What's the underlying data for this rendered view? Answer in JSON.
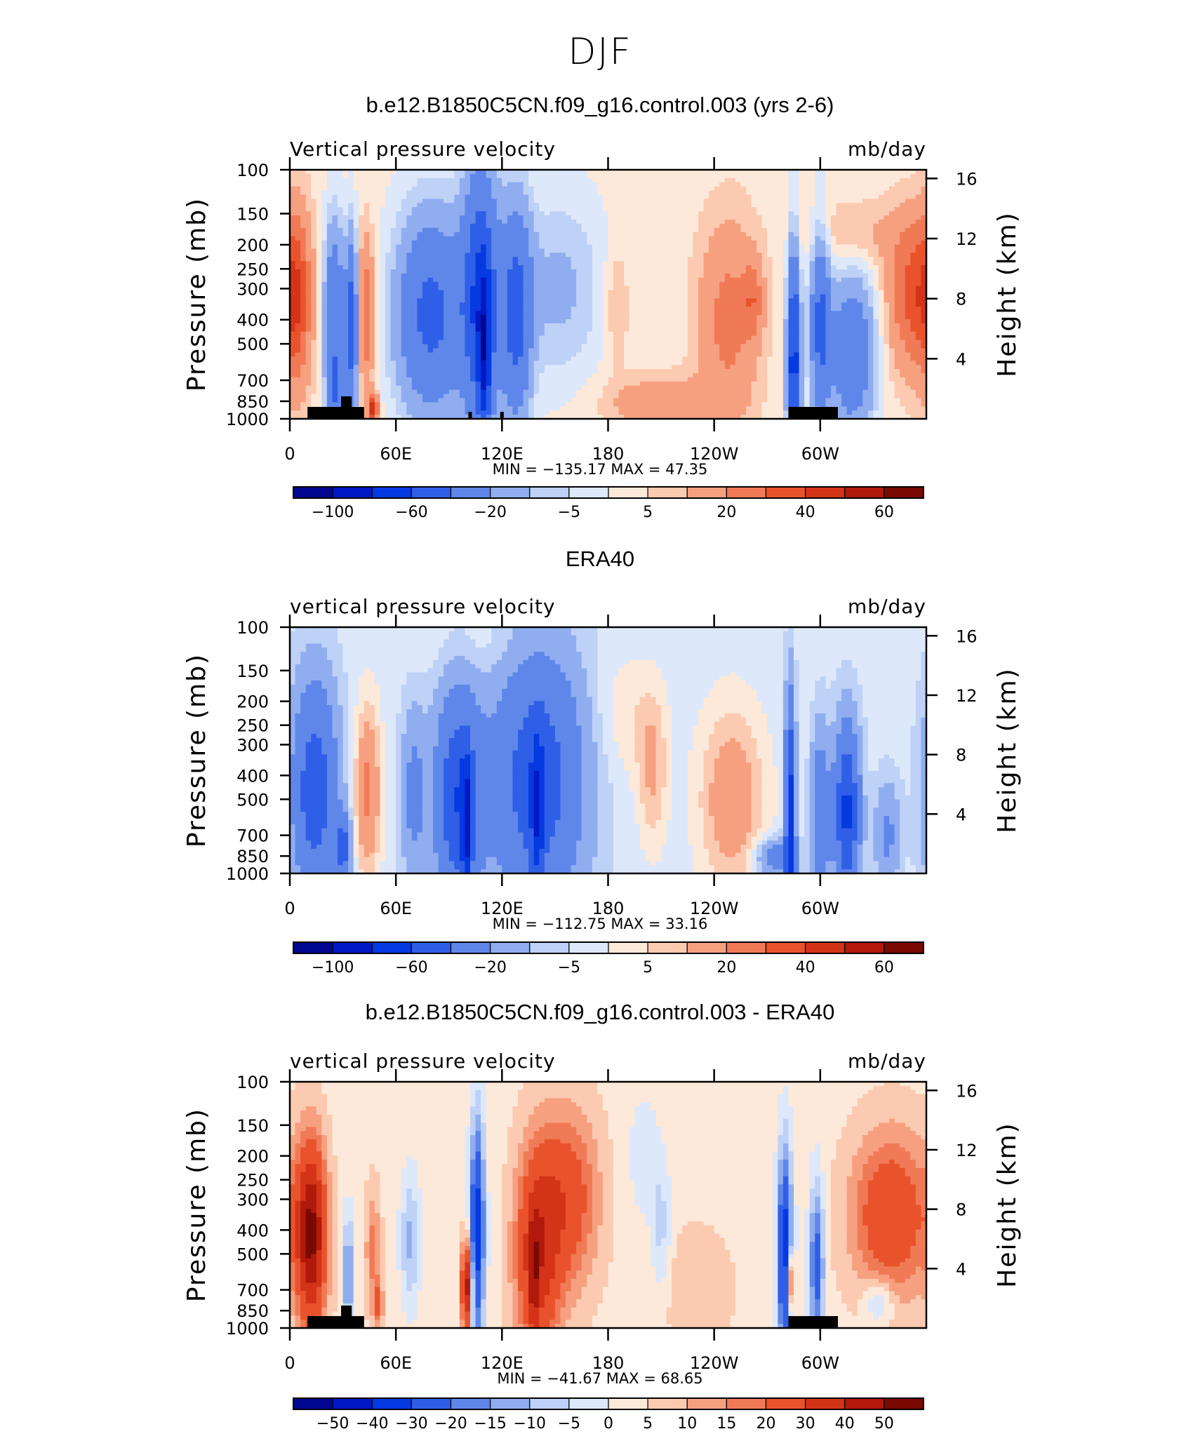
{
  "figure_title": "DJF",
  "colors": {
    "cool": [
      "#00068e",
      "#0019c4",
      "#0539e1",
      "#2f5fe6",
      "#5f87ea",
      "#90adf0",
      "#bed1f6",
      "#dde8fa"
    ],
    "warm": [
      "#fde9d9",
      "#fbcab0",
      "#f6a080",
      "#f17a56",
      "#e9532c",
      "#d33417",
      "#b0190b",
      "#7a0903"
    ],
    "land": "#000000"
  },
  "chart_data": [
    {
      "type": "heatmap",
      "title": "b.e12.B1850C5CN.f09_g16.control.003 (yrs 2-6)",
      "left_label": "Vertical pressure velocity",
      "right_label": "mb/day",
      "ylabel": "Pressure (mb)",
      "y2label": "Height (km)",
      "x_ticks": [
        "0",
        "60E",
        "120E",
        "180",
        "120W",
        "60W"
      ],
      "x_tick_lon": [
        0,
        60,
        120,
        180,
        240,
        300
      ],
      "xlim": [
        0,
        360
      ],
      "y_ticks": [
        "100",
        "150",
        "200",
        "250",
        "300",
        "400",
        "500",
        "700",
        "850",
        "1000"
      ],
      "y_tick_p": [
        100,
        150,
        200,
        250,
        300,
        400,
        500,
        700,
        850,
        1000
      ],
      "y_scale": "log-pressure",
      "ylim": [
        1000,
        100
      ],
      "y2_ticks": [
        "16",
        "12",
        "8",
        "4"
      ],
      "y2_tick_km": [
        16,
        12,
        8,
        4
      ],
      "stats_text": "MIN = −135.17   MAX =   47.35",
      "min": -135.17,
      "max": 47.35,
      "colorbar_labels": [
        "−100",
        "−60",
        "−20",
        "−5",
        "5",
        "20",
        "40",
        "60"
      ],
      "colorbar_levels": [
        -120,
        -100,
        -80,
        -60,
        -40,
        -20,
        -10,
        -5,
        0,
        5,
        10,
        20,
        30,
        40,
        50,
        60,
        80
      ],
      "field": {
        "background": 2,
        "features": [
          {
            "lon": 4,
            "p": 330,
            "dlon": 6,
            "dp": 0.6,
            "amp": 28
          },
          {
            "lon": 25,
            "p": 350,
            "dlon": 4,
            "dp": 0.55,
            "amp": -38
          },
          {
            "lon": 26,
            "p": 760,
            "dlon": 3.5,
            "dp": 0.25,
            "amp": -35
          },
          {
            "lon": 35,
            "p": 420,
            "dlon": 2.5,
            "dp": 0.55,
            "amp": -55
          },
          {
            "lon": 43,
            "p": 380,
            "dlon": 3.5,
            "dp": 0.5,
            "amp": 28
          },
          {
            "lon": 47,
            "p": 910,
            "dlon": 2,
            "dp": 0.1,
            "amp": 45
          },
          {
            "lon": 80,
            "p": 380,
            "dlon": 14,
            "dp": 0.65,
            "amp": -48
          },
          {
            "lon": 108,
            "p": 330,
            "dlon": 7,
            "dp": 0.85,
            "amp": -62
          },
          {
            "lon": 110,
            "p": 560,
            "dlon": 2.5,
            "dp": 0.5,
            "amp": -50
          },
          {
            "lon": 128,
            "p": 380,
            "dlon": 6,
            "dp": 0.7,
            "amp": -48
          },
          {
            "lon": 152,
            "p": 300,
            "dlon": 18,
            "dp": 0.6,
            "amp": -14
          },
          {
            "lon": 185,
            "p": 350,
            "dlon": 5,
            "dp": 0.4,
            "amp": 9
          },
          {
            "lon": 210,
            "p": 870,
            "dlon": 22,
            "dp": 0.18,
            "amp": 16
          },
          {
            "lon": 248,
            "p": 400,
            "dlon": 12,
            "dp": 0.65,
            "amp": 22
          },
          {
            "lon": 262,
            "p": 330,
            "dlon": 4,
            "dp": 0.25,
            "amp": 18
          },
          {
            "lon": 285,
            "p": 600,
            "dlon": 2.5,
            "dp": 0.7,
            "amp": -75
          },
          {
            "lon": 300,
            "p": 420,
            "dlon": 4,
            "dp": 0.6,
            "amp": -45
          },
          {
            "lon": 318,
            "p": 550,
            "dlon": 9,
            "dp": 0.5,
            "amp": -40
          },
          {
            "lon": 352,
            "p": 320,
            "dlon": 10,
            "dp": 0.5,
            "amp": 30
          },
          {
            "lon": 320,
            "p": 180,
            "dlon": 22,
            "dp": 0.22,
            "amp": 9
          }
        ]
      }
    },
    {
      "type": "heatmap",
      "title": "ERA40",
      "left_label": "vertical pressure velocity",
      "right_label": "mb/day",
      "ylabel": "Pressure (mb)",
      "y2label": "Height (km)",
      "x_ticks": [
        "0",
        "60E",
        "120E",
        "180",
        "120W",
        "60W"
      ],
      "x_tick_lon": [
        0,
        60,
        120,
        180,
        240,
        300
      ],
      "xlim": [
        0,
        360
      ],
      "y_ticks": [
        "100",
        "150",
        "200",
        "250",
        "300",
        "400",
        "500",
        "700",
        "850",
        "1000"
      ],
      "y_tick_p": [
        100,
        150,
        200,
        250,
        300,
        400,
        500,
        700,
        850,
        1000
      ],
      "y_scale": "log-pressure",
      "ylim": [
        1000,
        100
      ],
      "y2_ticks": [
        "16",
        "12",
        "8",
        "4"
      ],
      "y2_tick_km": [
        16,
        12,
        8,
        4
      ],
      "stats_text": "MIN = −112.75   MAX =   33.16",
      "min": -112.75,
      "max": 33.16,
      "colorbar_labels": [
        "−100",
        "−60",
        "−20",
        "−5",
        "5",
        "20",
        "40",
        "60"
      ],
      "colorbar_levels": [
        -120,
        -100,
        -80,
        -60,
        -40,
        -20,
        -10,
        -5,
        0,
        5,
        10,
        20,
        30,
        40,
        50,
        60,
        80
      ],
      "field": {
        "background": -3,
        "features": [
          {
            "lon": 14,
            "p": 460,
            "dlon": 9,
            "dp": 0.7,
            "amp": -50
          },
          {
            "lon": 30,
            "p": 780,
            "dlon": 3,
            "dp": 0.2,
            "amp": -45
          },
          {
            "lon": 44,
            "p": 460,
            "dlon": 5,
            "dp": 0.55,
            "amp": 26
          },
          {
            "lon": 70,
            "p": 480,
            "dlon": 5,
            "dp": 0.55,
            "amp": -22
          },
          {
            "lon": 95,
            "p": 500,
            "dlon": 9,
            "dp": 0.7,
            "amp": -55
          },
          {
            "lon": 100,
            "p": 650,
            "dlon": 2,
            "dp": 0.45,
            "amp": -50
          },
          {
            "lon": 140,
            "p": 420,
            "dlon": 18,
            "dp": 0.85,
            "amp": -50
          },
          {
            "lon": 140,
            "p": 580,
            "dlon": 2.5,
            "dp": 0.5,
            "amp": -40
          },
          {
            "lon": 205,
            "p": 380,
            "dlon": 6,
            "dp": 0.5,
            "amp": 14
          },
          {
            "lon": 190,
            "p": 230,
            "dlon": 12,
            "dp": 0.4,
            "amp": 7
          },
          {
            "lon": 250,
            "p": 500,
            "dlon": 13,
            "dp": 0.6,
            "amp": 20
          },
          {
            "lon": 275,
            "p": 860,
            "dlon": 8,
            "dp": 0.12,
            "amp": -28
          },
          {
            "lon": 283,
            "p": 600,
            "dlon": 2,
            "dp": 0.75,
            "amp": -70
          },
          {
            "lon": 300,
            "p": 600,
            "dlon": 3.5,
            "dp": 0.55,
            "amp": -36
          },
          {
            "lon": 315,
            "p": 560,
            "dlon": 5,
            "dp": 0.55,
            "amp": -62
          },
          {
            "lon": 338,
            "p": 700,
            "dlon": 5,
            "dp": 0.35,
            "amp": -20
          },
          {
            "lon": 110,
            "p": 120,
            "dlon": 25,
            "dp": 0.22,
            "amp": 4
          }
        ]
      }
    },
    {
      "type": "heatmap",
      "title": "b.e12.B1850C5CN.f09_g16.control.003 - ERA40",
      "left_label": "vertical pressure velocity",
      "right_label": "mb/day",
      "ylabel": "Pressure (mb)",
      "y2label": "Height (km)",
      "x_ticks": [
        "0",
        "60E",
        "120E",
        "180",
        "120W",
        "60W"
      ],
      "x_tick_lon": [
        0,
        60,
        120,
        180,
        240,
        300
      ],
      "xlim": [
        0,
        360
      ],
      "y_ticks": [
        "100",
        "150",
        "200",
        "250",
        "300",
        "400",
        "500",
        "700",
        "850",
        "1000"
      ],
      "y_tick_p": [
        100,
        150,
        200,
        250,
        300,
        400,
        500,
        700,
        850,
        1000
      ],
      "y_scale": "log-pressure",
      "ylim": [
        1000,
        100
      ],
      "y2_ticks": [
        "16",
        "12",
        "8",
        "4"
      ],
      "y2_tick_km": [
        16,
        12,
        8,
        4
      ],
      "stats_text": "MIN = −41.67   MAX =   68.65",
      "min": -41.67,
      "max": 68.65,
      "colorbar_labels": [
        "−50",
        "−40",
        "−30",
        "−20",
        "−15",
        "−10",
        "−5",
        "0",
        "5",
        "10",
        "15",
        "20",
        "30",
        "40",
        "50"
      ],
      "colorbar_levels": [
        -60,
        -50,
        -40,
        -30,
        -20,
        -15,
        -10,
        -5,
        0,
        5,
        10,
        15,
        20,
        30,
        40,
        50,
        60
      ],
      "field": {
        "background": 3,
        "features": [
          {
            "lon": 12,
            "p": 420,
            "dlon": 6,
            "dp": 0.6,
            "amp": 48
          },
          {
            "lon": 33,
            "p": 600,
            "dlon": 2,
            "dp": 0.4,
            "amp": -22
          },
          {
            "lon": 47,
            "p": 480,
            "dlon": 3,
            "dp": 0.4,
            "amp": 14
          },
          {
            "lon": 50,
            "p": 800,
            "dlon": 2,
            "dp": 0.15,
            "amp": 18
          },
          {
            "lon": 68,
            "p": 440,
            "dlon": 4,
            "dp": 0.45,
            "amp": -14
          },
          {
            "lon": 100,
            "p": 680,
            "dlon": 2,
            "dp": 0.3,
            "amp": 45
          },
          {
            "lon": 106,
            "p": 400,
            "dlon": 3,
            "dp": 0.75,
            "amp": -38
          },
          {
            "lon": 140,
            "p": 500,
            "dlon": 9,
            "dp": 0.7,
            "amp": 32
          },
          {
            "lon": 158,
            "p": 300,
            "dlon": 12,
            "dp": 0.6,
            "amp": 22
          },
          {
            "lon": 138,
            "p": 620,
            "dlon": 2,
            "dp": 0.4,
            "amp": 18
          },
          {
            "lon": 210,
            "p": 400,
            "dlon": 4,
            "dp": 0.45,
            "amp": -10
          },
          {
            "lon": 230,
            "p": 700,
            "dlon": 14,
            "dp": 0.4,
            "amp": 7
          },
          {
            "lon": 280,
            "p": 500,
            "dlon": 3,
            "dp": 0.7,
            "amp": -40
          },
          {
            "lon": 283,
            "p": 650,
            "dlon": 1.5,
            "dp": 0.2,
            "amp": 32
          },
          {
            "lon": 298,
            "p": 550,
            "dlon": 3,
            "dp": 0.55,
            "amp": -28
          },
          {
            "lon": 340,
            "p": 350,
            "dlon": 16,
            "dp": 0.55,
            "amp": 26
          },
          {
            "lon": 333,
            "p": 780,
            "dlon": 6,
            "dp": 0.15,
            "amp": -14
          },
          {
            "lon": 200,
            "p": 200,
            "dlon": 6,
            "dp": 0.4,
            "amp": -7
          }
        ]
      }
    }
  ]
}
